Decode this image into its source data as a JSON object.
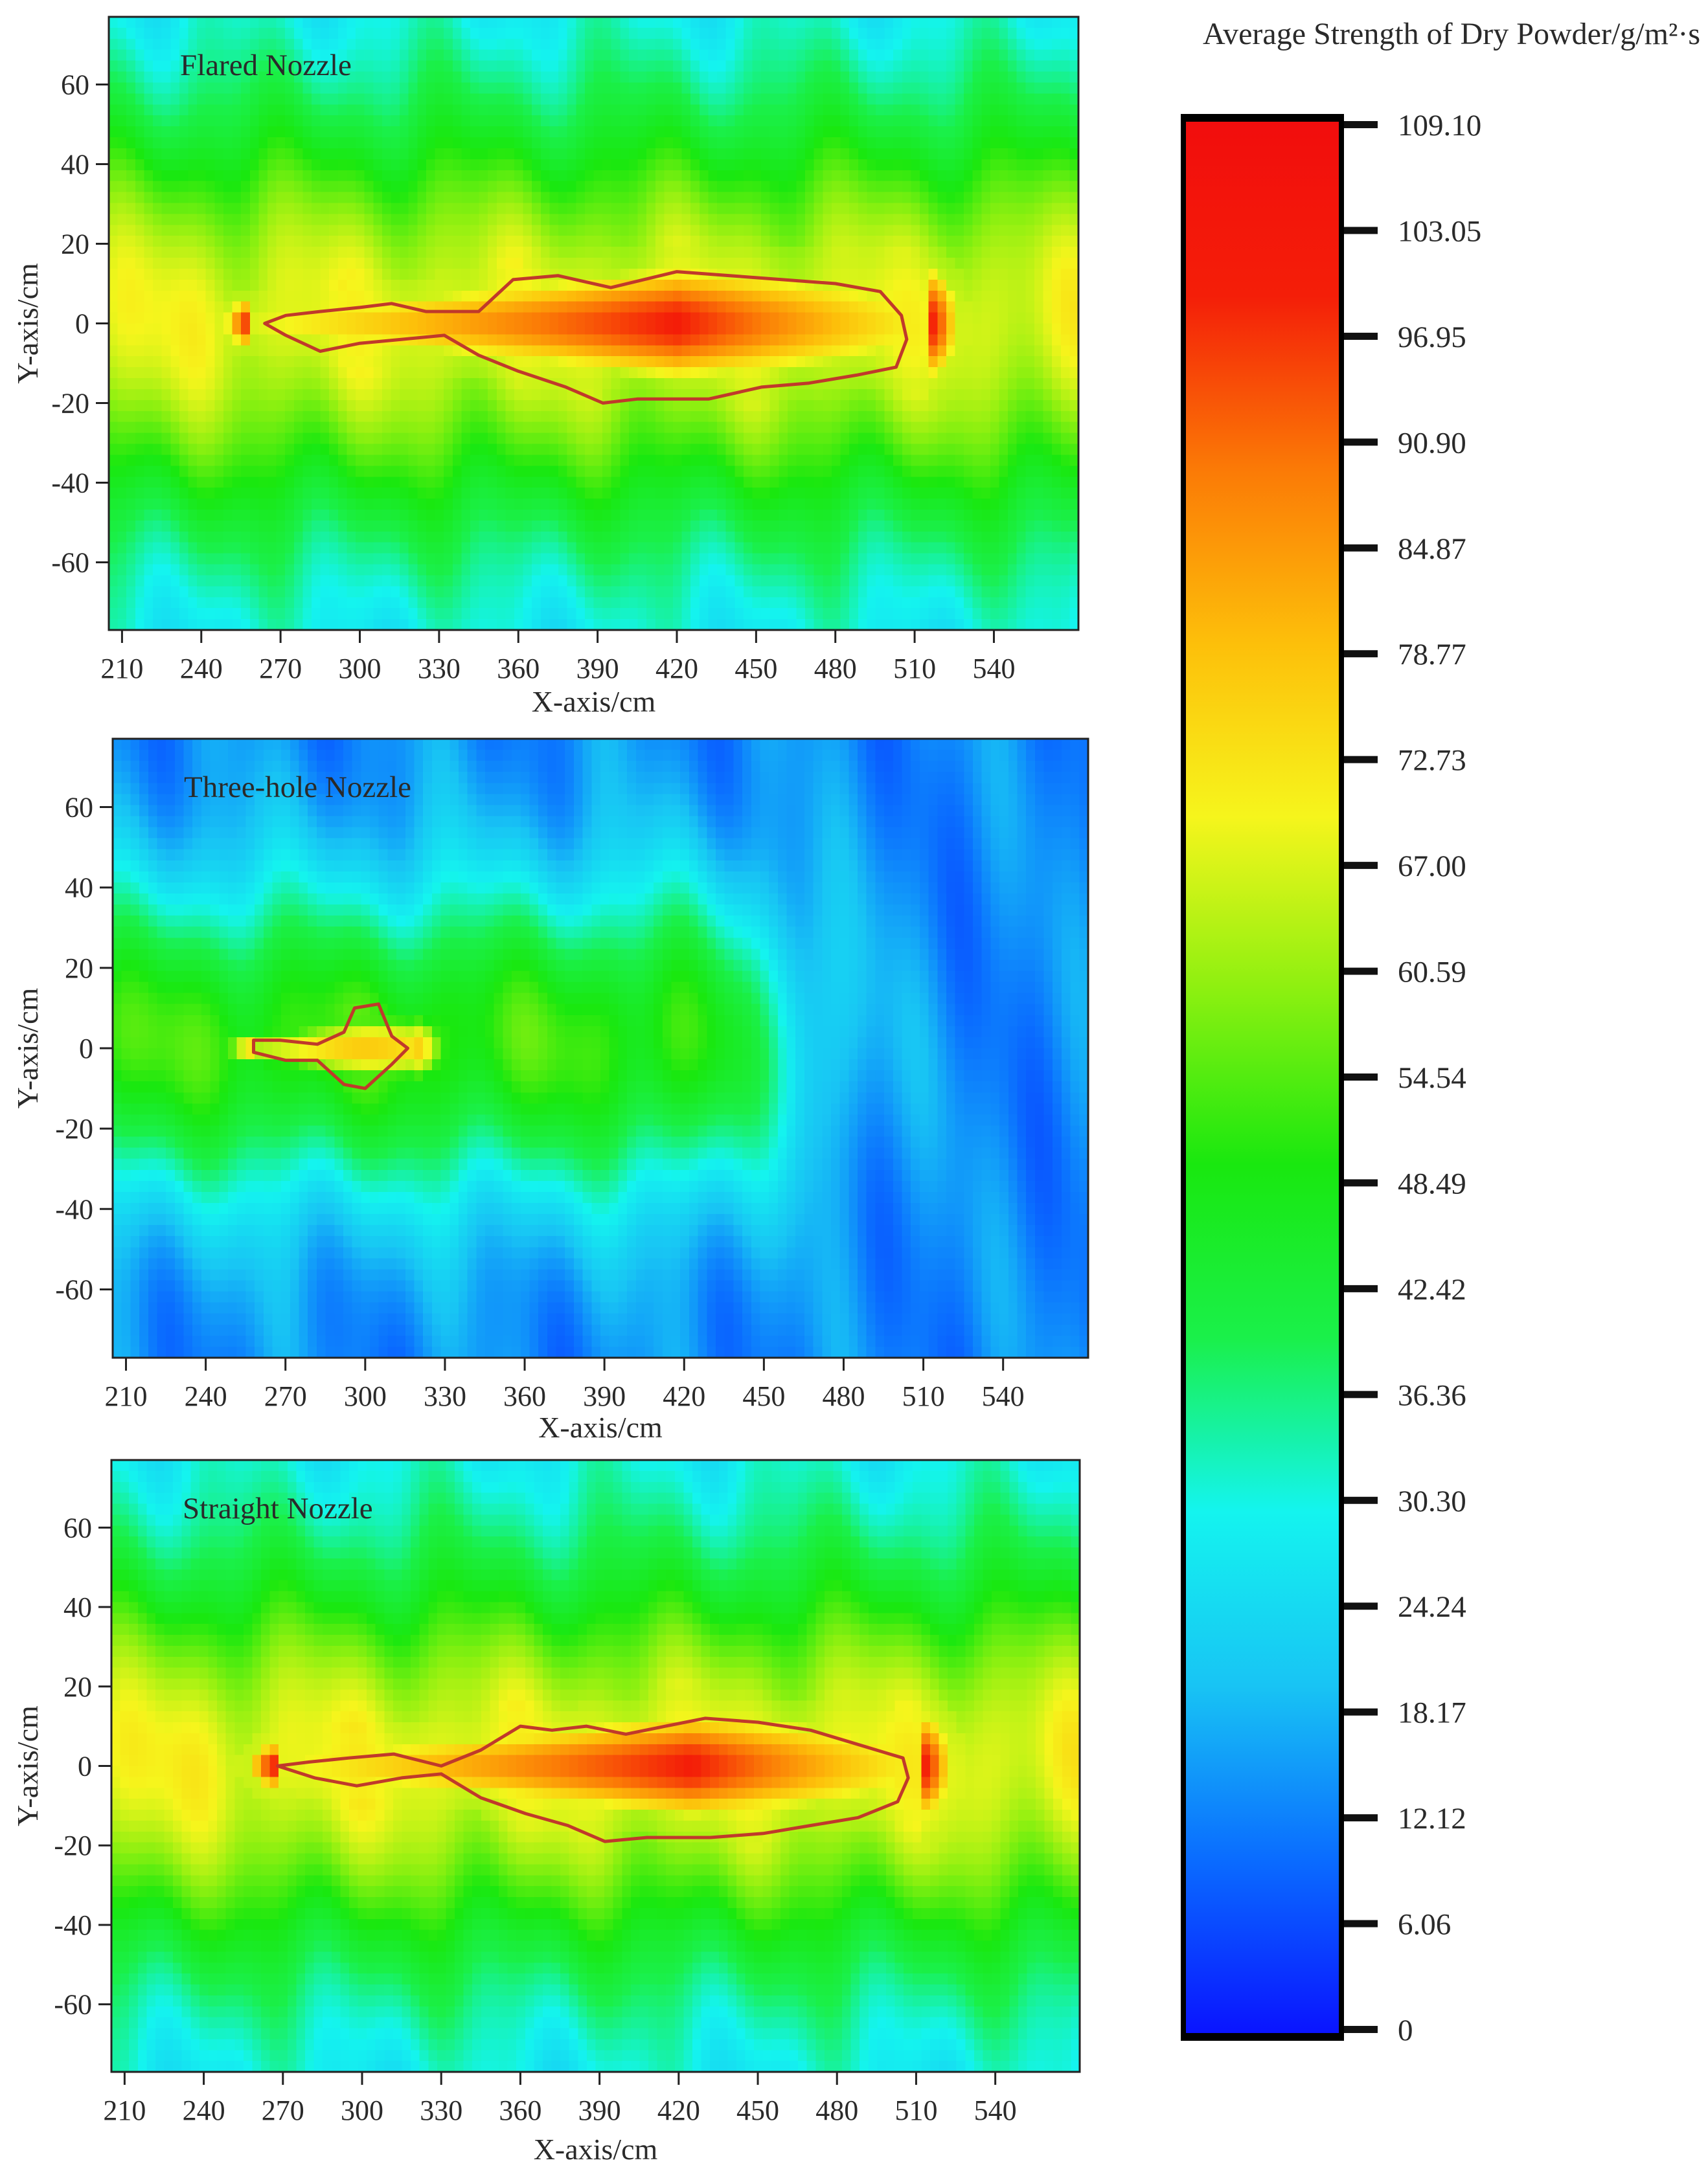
{
  "figure": {
    "colorbar": {
      "title": "Average Strength of Dry Powder/g/m²·s",
      "ticks": [
        "109.10",
        "103.05",
        "96.95",
        "90.90",
        "84.87",
        "78.77",
        "72.73",
        "67.00",
        "60.59",
        "54.54",
        "48.49",
        "42.42",
        "36.36",
        "30.30",
        "24.24",
        "18.17",
        "12.12",
        "6.06",
        "0"
      ],
      "range": [
        0,
        109.1
      ],
      "colors": [
        "#0a14ff",
        "#0a6cff",
        "#18c4f4",
        "#14f4ef",
        "#1af04a",
        "#19e80f",
        "#8cf010",
        "#f6f51c",
        "#fdbf0a",
        "#fb7a06",
        "#f41e08",
        "#f20d0d"
      ]
    }
  },
  "chart_data": [
    {
      "type": "heatmap",
      "title": "Flared Nozzle",
      "xlabel": "X-axis/cm",
      "ylabel": "Y-axis/cm",
      "xticks": [
        210,
        240,
        270,
        300,
        330,
        360,
        390,
        420,
        450,
        480,
        510,
        540
      ],
      "yticks": [
        60,
        40,
        20,
        0,
        -20,
        -40,
        -60
      ],
      "xlim": [
        205,
        572
      ],
      "ylim": [
        -77,
        77
      ],
      "field": {
        "bg": 24,
        "core_peak": 100,
        "core_x": [
          260,
          515
        ],
        "core_center_x": 420,
        "core_half_width_y": 15,
        "plume_peak": 58,
        "plume_half_width_y": 38,
        "upper_bias": 4
      },
      "contour_level": 72,
      "contour": [
        [
          264,
          0
        ],
        [
          272,
          2
        ],
        [
          285,
          3
        ],
        [
          300,
          4
        ],
        [
          312,
          5
        ],
        [
          325,
          3
        ],
        [
          345,
          3
        ],
        [
          358,
          11
        ],
        [
          375,
          12
        ],
        [
          395,
          9
        ],
        [
          420,
          13
        ],
        [
          440,
          12
        ],
        [
          460,
          11
        ],
        [
          480,
          10
        ],
        [
          497,
          8
        ],
        [
          505,
          2
        ],
        [
          507,
          -4
        ],
        [
          503,
          -11
        ],
        [
          488,
          -13
        ],
        [
          470,
          -15
        ],
        [
          452,
          -16
        ],
        [
          432,
          -19
        ],
        [
          405,
          -19
        ],
        [
          392,
          -20
        ],
        [
          378,
          -16
        ],
        [
          360,
          -12
        ],
        [
          345,
          -8
        ],
        [
          332,
          -3
        ],
        [
          316,
          -4
        ],
        [
          300,
          -5
        ],
        [
          285,
          -7
        ],
        [
          272,
          -3
        ]
      ]
    },
    {
      "type": "heatmap",
      "title": "Three-hole Nozzle",
      "xlabel": "X-axis/cm",
      "ylabel": "Y-axis/cm",
      "xticks": [
        210,
        240,
        270,
        300,
        330,
        360,
        390,
        420,
        450,
        480,
        510,
        540
      ],
      "yticks": [
        60,
        40,
        20,
        0,
        -20,
        -40,
        -60
      ],
      "xlim": [
        205,
        572
      ],
      "ylim": [
        -77,
        77
      ],
      "field": {
        "bg": 13,
        "core_peak": 78,
        "core_x": [
          258,
          318
        ],
        "core_center_x": 300,
        "core_half_width_y": 8,
        "plume_peak": 52,
        "plume_half_width_y": 28,
        "plume_x_end": 410,
        "upper_bias": 6
      },
      "contour_level": 72,
      "contour": [
        [
          258,
          2
        ],
        [
          268,
          2
        ],
        [
          282,
          1
        ],
        [
          292,
          4
        ],
        [
          296,
          10
        ],
        [
          305,
          11
        ],
        [
          310,
          3
        ],
        [
          316,
          0
        ],
        [
          310,
          -4
        ],
        [
          300,
          -10
        ],
        [
          292,
          -9
        ],
        [
          282,
          -3
        ],
        [
          270,
          -3
        ],
        [
          258,
          -1
        ]
      ]
    },
    {
      "type": "heatmap",
      "title": "Straight Nozzle",
      "xlabel": "X-axis/cm",
      "ylabel": "Y-axis/cm",
      "xticks": [
        210,
        240,
        270,
        300,
        330,
        360,
        390,
        420,
        450,
        480,
        510,
        540
      ],
      "yticks": [
        60,
        40,
        20,
        0,
        -20,
        -40,
        -60
      ],
      "xlim": [
        205,
        572
      ],
      "ylim": [
        -77,
        77
      ],
      "field": {
        "bg": 25,
        "core_peak": 100,
        "core_x": [
          268,
          512
        ],
        "core_center_x": 425,
        "core_half_width_y": 14,
        "plume_peak": 58,
        "plume_half_width_y": 36,
        "upper_bias": 3
      },
      "contour_level": 72,
      "contour": [
        [
          268,
          0
        ],
        [
          280,
          1
        ],
        [
          295,
          2
        ],
        [
          312,
          3
        ],
        [
          330,
          0
        ],
        [
          345,
          4
        ],
        [
          360,
          10
        ],
        [
          372,
          9
        ],
        [
          385,
          10
        ],
        [
          400,
          8
        ],
        [
          415,
          10
        ],
        [
          430,
          12
        ],
        [
          450,
          11
        ],
        [
          470,
          9
        ],
        [
          485,
          6
        ],
        [
          500,
          3
        ],
        [
          505,
          2
        ],
        [
          507,
          -3
        ],
        [
          503,
          -9
        ],
        [
          488,
          -13
        ],
        [
          470,
          -15
        ],
        [
          452,
          -17
        ],
        [
          432,
          -18
        ],
        [
          408,
          -18
        ],
        [
          392,
          -19
        ],
        [
          378,
          -15
        ],
        [
          362,
          -12
        ],
        [
          345,
          -8
        ],
        [
          330,
          -2
        ],
        [
          315,
          -3
        ],
        [
          298,
          -5
        ],
        [
          282,
          -3
        ]
      ]
    }
  ]
}
